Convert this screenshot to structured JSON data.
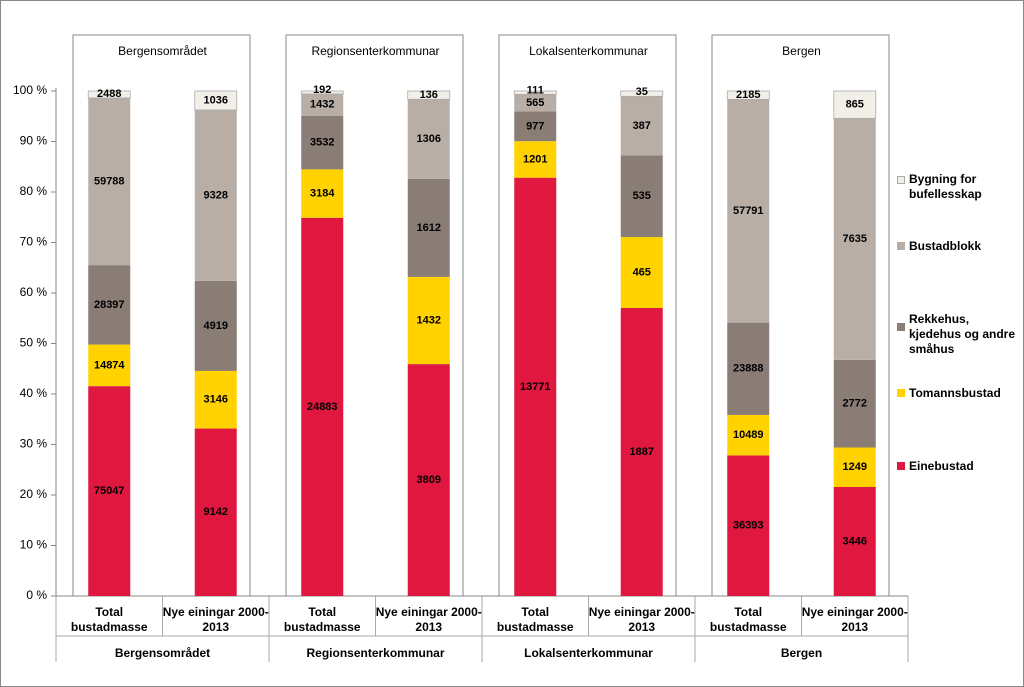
{
  "chart_data": {
    "type": "bar",
    "stack": "percent",
    "groups": [
      "Bergensområdet",
      "Regionsenterkommunar",
      "Lokalsenterkommunar",
      "Bergen"
    ],
    "categories": [
      "Total bustadmasse",
      "Nye einingar 2000-2013",
      "Total bustadmasse",
      "Nye einingar 2000-2013",
      "Total bustadmasse",
      "Nye einingar 2000-2013",
      "Total bustadmasse",
      "Nye einingar 2000-2013"
    ],
    "series": [
      {
        "name": "Einebustad",
        "color": "#e0173f",
        "values": [
          75047,
          9142,
          24883,
          3809,
          13771,
          1887,
          36393,
          3446
        ]
      },
      {
        "name": "Tomannsbustad",
        "color": "#ffd200",
        "values": [
          14874,
          3146,
          3184,
          1432,
          1201,
          465,
          10489,
          1249
        ]
      },
      {
        "name": "Rekkehus, kjedehus og andre småhus",
        "color": "#8a7d75",
        "values": [
          28397,
          4919,
          3532,
          1612,
          977,
          535,
          23888,
          2772
        ]
      },
      {
        "name": "Bustadblokk",
        "color": "#b9aea6",
        "values": [
          59788,
          9328,
          1432,
          1306,
          565,
          387,
          57791,
          7635
        ]
      },
      {
        "name": "Bygning for bufellesskap",
        "color": "#f2efe8",
        "values": [
          2488,
          1036,
          192,
          136,
          111,
          35,
          2185,
          865
        ]
      }
    ],
    "ylim": [
      0,
      100
    ],
    "yticks": [
      {
        "value": 0,
        "label": "0 %"
      },
      {
        "value": 10,
        "label": "10 %"
      },
      {
        "value": 20,
        "label": "20 %"
      },
      {
        "value": 30,
        "label": "30 %"
      },
      {
        "value": 40,
        "label": "40 %"
      },
      {
        "value": 50,
        "label": "50 %"
      },
      {
        "value": 60,
        "label": "60 %"
      },
      {
        "value": 70,
        "label": "70 %"
      },
      {
        "value": 80,
        "label": "80 %"
      },
      {
        "value": 90,
        "label": "90 %"
      },
      {
        "value": 100,
        "label": "100 %"
      }
    ],
    "grid": false,
    "legend": "right"
  }
}
